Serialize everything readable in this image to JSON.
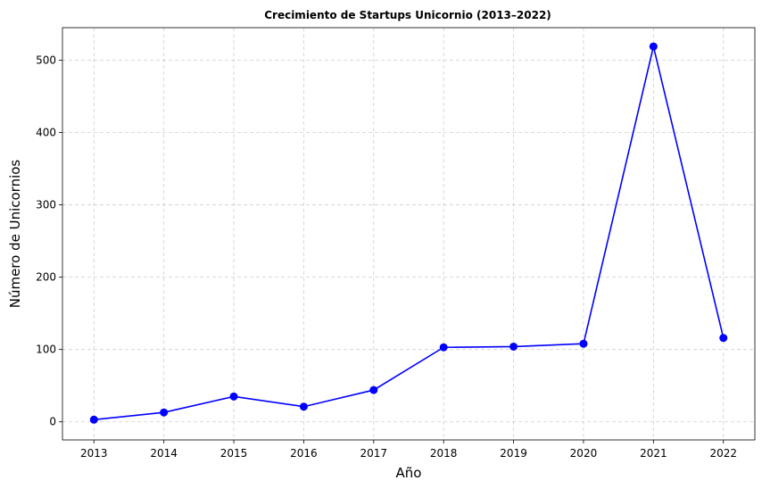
{
  "chart_data": {
    "type": "line",
    "title": "Crecimiento de Startups Unicornio (2013–2022)",
    "xlabel": "Año",
    "ylabel": "Número de Unicornios",
    "x": [
      2013,
      2014,
      2015,
      2016,
      2017,
      2018,
      2019,
      2020,
      2021,
      2022
    ],
    "series": [
      {
        "values": [
          3,
          13,
          35,
          21,
          44,
          103,
          104,
          108,
          519,
          116
        ],
        "color": "#0000ff",
        "marker": "circle"
      }
    ],
    "x_ticks": [
      "2013",
      "2014",
      "2015",
      "2016",
      "2017",
      "2018",
      "2019",
      "2020",
      "2021",
      "2022"
    ],
    "y_ticks": [
      0,
      100,
      200,
      300,
      400,
      500
    ],
    "xlim": [
      2012.55,
      2022.45
    ],
    "ylim": [
      -25,
      545
    ],
    "grid": true,
    "legend": "none"
  }
}
